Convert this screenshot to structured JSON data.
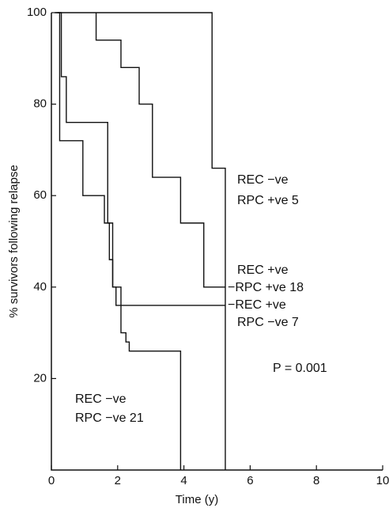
{
  "chart_data": {
    "type": "step",
    "x_label": "Time (y)",
    "y_label": "% survivors following relapse",
    "xlim": [
      0,
      10
    ],
    "ylim": [
      0,
      100
    ],
    "xticks": [
      0,
      2,
      4,
      6,
      8,
      10
    ],
    "yticks": [
      20,
      40,
      60,
      80,
      100
    ],
    "color": "#111111",
    "series": [
      {
        "x": [
          0.2,
          4.85,
          5.25
        ],
        "values": [
          100,
          66,
          0
        ]
      },
      {
        "x": [
          1.35,
          1.35,
          2.1,
          2.65,
          3.05,
          3.9,
          4.6,
          5.25
        ],
        "values": [
          100,
          94,
          88,
          80,
          64,
          54,
          40,
          40
        ]
      },
      {
        "x": [
          0.15,
          0.3,
          0.45,
          1.7,
          1.85,
          1.95,
          5.25
        ],
        "values": [
          100,
          86,
          76,
          54,
          40,
          36,
          36
        ]
      },
      {
        "x": [
          0.1,
          0.25,
          0.95,
          1.6,
          1.75,
          1.85,
          2.1,
          2.25,
          2.35,
          3.9
        ],
        "values": [
          100,
          72,
          60,
          54,
          46,
          40,
          30,
          28,
          26,
          0
        ]
      }
    ],
    "annotations": [
      "REC  −ve",
      "RPC  +ve 5",
      "REC  +ve",
      "−RPC  +ve 18",
      "−REC  +ve",
      "RPC  −ve 7",
      "REC  −ve",
      "RPC  −ve 21",
      "P = 0.001"
    ]
  }
}
